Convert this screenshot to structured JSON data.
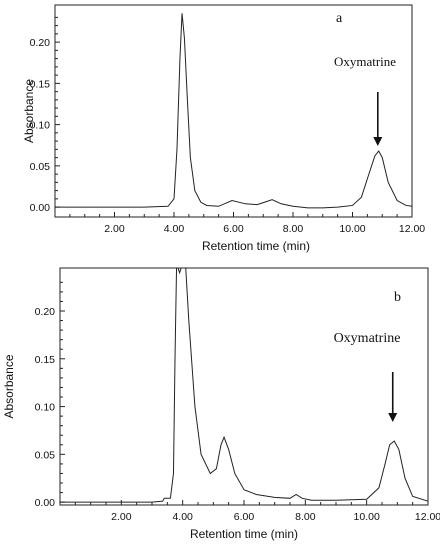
{
  "chart_data": [
    {
      "type": "line",
      "panel_label": "a",
      "xlabel": "Retention time (min)",
      "ylabel": "Absorbance",
      "xlim": [
        0,
        12
      ],
      "ylim": [
        -0.012,
        0.245
      ],
      "xticks": [
        "2.00",
        "4.00",
        "6.00",
        "8.00",
        "10.00",
        "12.00"
      ],
      "yticks": [
        "0.00",
        "0.05",
        "0.10",
        "0.15",
        "0.20"
      ],
      "grid": false,
      "annotation": {
        "text": "Oxymatrine",
        "arrow_x": 10.85
      },
      "series": [
        {
          "x": [
            0.0,
            1.5,
            3.0,
            3.8,
            4.0,
            4.1,
            4.2,
            4.27,
            4.35,
            4.45,
            4.55,
            4.7,
            4.9,
            5.1,
            5.5,
            5.95,
            6.4,
            6.8,
            7.05,
            7.3,
            7.6,
            8.0,
            8.5,
            9.0,
            9.5,
            10.0,
            10.3,
            10.55,
            10.75,
            10.88,
            11.0,
            11.2,
            11.5,
            11.8,
            12.0
          ],
          "y": [
            0.0,
            0.0,
            0.0,
            0.001,
            0.01,
            0.07,
            0.18,
            0.235,
            0.205,
            0.13,
            0.06,
            0.02,
            0.006,
            0.002,
            0.001,
            0.008,
            0.004,
            0.003,
            0.006,
            0.009,
            0.004,
            0.001,
            -0.001,
            -0.001,
            0.0,
            0.002,
            0.012,
            0.04,
            0.062,
            0.068,
            0.06,
            0.03,
            0.008,
            0.002,
            0.001
          ]
        }
      ]
    },
    {
      "type": "line",
      "panel_label": "b",
      "xlabel": "Retention time (min)",
      "ylabel": "Absorbance",
      "xlim": [
        0,
        12
      ],
      "ylim": [
        -0.003,
        0.245
      ],
      "xticks": [
        "2.00",
        "4.00",
        "6.00",
        "8.00",
        "10.00",
        "12.00"
      ],
      "yticks": [
        "0.00",
        "0.05",
        "0.10",
        "0.15",
        "0.20"
      ],
      "grid": false,
      "annotation": {
        "text": "Oxymatrine",
        "arrow_x": 10.85
      },
      "series": [
        {
          "x": [
            0.0,
            1.5,
            3.0,
            3.35,
            3.4,
            3.6,
            3.7,
            3.75,
            3.8,
            3.85,
            3.9,
            3.95,
            4.0,
            4.1,
            4.2,
            4.4,
            4.6,
            4.9,
            5.1,
            5.25,
            5.35,
            5.5,
            5.7,
            6.0,
            6.4,
            7.0,
            7.5,
            7.7,
            7.9,
            8.2,
            9.0,
            10.0,
            10.4,
            10.6,
            10.75,
            10.9,
            11.05,
            11.25,
            11.5,
            12.0
          ],
          "y": [
            0.0,
            0.0,
            0.0,
            0.001,
            0.004,
            0.004,
            0.03,
            0.15,
            0.27,
            0.27,
            0.24,
            0.255,
            0.27,
            0.26,
            0.19,
            0.1,
            0.05,
            0.03,
            0.035,
            0.06,
            0.068,
            0.055,
            0.03,
            0.013,
            0.008,
            0.005,
            0.004,
            0.008,
            0.004,
            0.002,
            0.002,
            0.003,
            0.015,
            0.04,
            0.06,
            0.064,
            0.055,
            0.025,
            0.006,
            0.001
          ]
        }
      ]
    }
  ]
}
